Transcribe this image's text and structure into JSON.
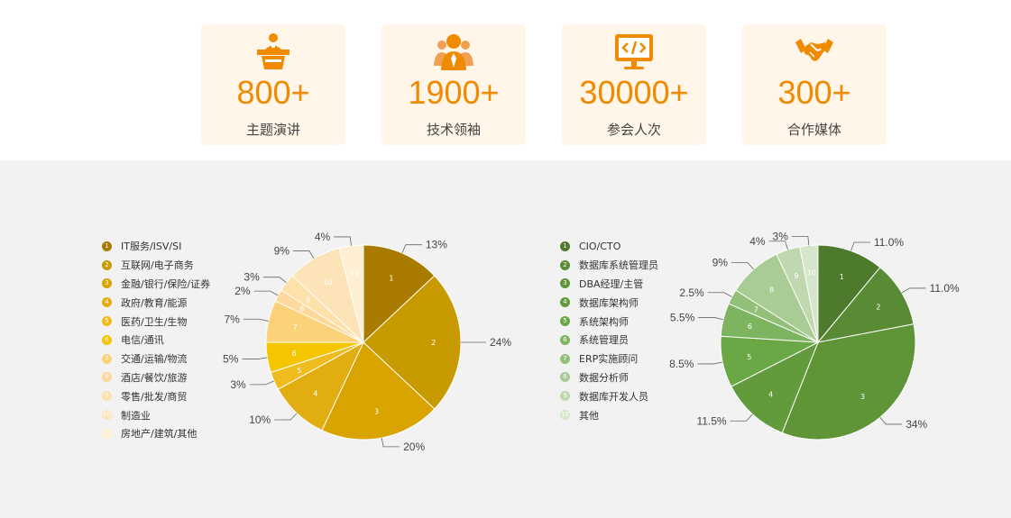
{
  "stats": [
    {
      "number": "800+",
      "label": "主题演讲",
      "icon": "speaker-podium-icon"
    },
    {
      "number": "1900+",
      "label": "技术领袖",
      "icon": "people-group-icon"
    },
    {
      "number": "30000+",
      "label": "参会人次",
      "icon": "code-monitor-icon"
    },
    {
      "number": "300+",
      "label": "合作媒体",
      "icon": "handshake-icon"
    }
  ],
  "colors": {
    "accent": "#f08a00",
    "card_bg": "#fff5e8",
    "section_bg": "#f2f2f2"
  },
  "chart_data": [
    {
      "type": "pie",
      "legend_position": "left",
      "categories": [
        "IT服务/ISV/SI",
        "互联网/电子商务",
        "金融/银行/保险/证券",
        "政府/教育/能源",
        "医药/卫生/生物",
        "电信/通讯",
        "交通/运输/物流",
        "酒店/餐饮/旅游",
        "零售/批发/商贸",
        "制造业",
        "房地产/建筑/其他"
      ],
      "values": [
        13,
        24,
        20,
        10,
        3,
        5,
        7,
        2,
        3,
        9,
        4
      ],
      "value_labels": [
        "13%",
        "24%",
        "20%",
        "10%",
        "3%",
        "5%",
        "7%",
        "2%",
        "3%",
        "9%",
        "4%"
      ],
      "colors": [
        "#a97c00",
        "#c79a00",
        "#d9a300",
        "#e2ad10",
        "#efbb1d",
        "#f5c500",
        "#fbd27a",
        "#fcd89a",
        "#fde0aa",
        "#fde4b8",
        "#feeed2"
      ]
    },
    {
      "type": "pie",
      "legend_position": "left",
      "categories": [
        "CIO/CTO",
        "数据库系统管理员",
        "DBA经理/主管",
        "数据库架构师",
        "系统架构师",
        "系统管理员",
        "ERP实施顾问",
        "数据分析师",
        "数据库开发人员",
        "其他"
      ],
      "values": [
        11.0,
        11.0,
        34,
        11.5,
        8.5,
        5.5,
        2.5,
        9,
        4,
        3
      ],
      "value_labels": [
        "11.0%",
        "11.0%",
        "34%",
        "11.5%",
        "8.5%",
        "5.5%",
        "2.5%",
        "9%",
        "4%",
        "3%"
      ],
      "colors": [
        "#4d7a2c",
        "#588b33",
        "#5f9437",
        "#629b3b",
        "#6aa845",
        "#7db45f",
        "#93c078",
        "#a9cb94",
        "#bfd8b0",
        "#d5e6ca"
      ]
    }
  ]
}
